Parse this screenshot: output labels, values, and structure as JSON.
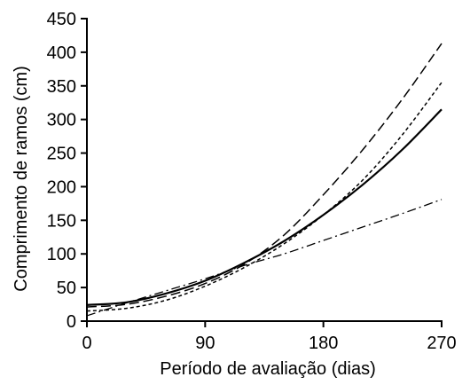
{
  "chart_data": {
    "type": "line",
    "title": "",
    "xlabel": "Período de avaliação (dias)",
    "ylabel": "Comprimento de ramos (cm)",
    "xlim": [
      0,
      270
    ],
    "ylim": [
      0,
      450
    ],
    "xticks": [
      0,
      90,
      180,
      270
    ],
    "yticks": [
      0,
      50,
      100,
      150,
      200,
      250,
      300,
      350,
      400,
      450
    ],
    "grid": false,
    "legend": "none",
    "series": [
      {
        "style": "solid",
        "color": "#000000",
        "x": [
          0,
          30,
          60,
          90,
          120,
          150,
          180,
          210,
          240,
          270
        ],
        "y": [
          24,
          28,
          41,
          60,
          87,
          119,
          158,
          203,
          255,
          315
        ]
      },
      {
        "style": "dashed",
        "color": "#000000",
        "x": [
          0,
          30,
          60,
          90,
          120,
          150,
          180,
          210,
          240,
          270
        ],
        "y": [
          21,
          25,
          37,
          56,
          85,
          128,
          188,
          255,
          330,
          413
        ]
      },
      {
        "style": "dotted",
        "color": "#000000",
        "x": [
          0,
          30,
          60,
          90,
          120,
          150,
          180,
          210,
          240,
          270
        ],
        "y": [
          15,
          19,
          31,
          52,
          80,
          115,
          158,
          210,
          277,
          355
        ]
      },
      {
        "style": "dash-dot",
        "color": "#000000",
        "x": [
          0,
          30,
          60,
          90,
          120,
          150,
          180,
          210,
          240,
          270
        ],
        "y": [
          8,
          27,
          45,
          63,
          83,
          100,
          120,
          140,
          160,
          181
        ]
      }
    ]
  }
}
